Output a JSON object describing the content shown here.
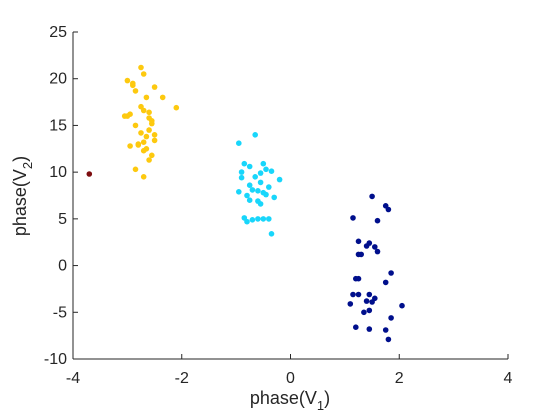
{
  "chart_data": {
    "type": "scatter",
    "title": "",
    "xlabel": {
      "base": "phase(V",
      "sub": "1",
      "close": ")"
    },
    "ylabel": {
      "base": "phase(V",
      "sub": "2",
      "close": ")"
    },
    "xlim": [
      -4,
      4
    ],
    "ylim": [
      -10,
      25
    ],
    "xticks": [
      -4,
      -2,
      0,
      2,
      4
    ],
    "yticks": [
      -10,
      -5,
      0,
      5,
      10,
      15,
      20,
      25
    ],
    "xtick_labels": [
      "-4",
      "-2",
      "0",
      "2",
      "4"
    ],
    "ytick_labels": [
      "-10",
      "-5",
      "0",
      "5",
      "10",
      "15",
      "20",
      "25"
    ],
    "grid": false,
    "legend": false,
    "series": [
      {
        "color": "#fdc90f",
        "x": [
          -2.75,
          -3.0,
          -2.9,
          -2.85,
          -2.65,
          -2.7,
          -2.5,
          -2.35,
          -3.0,
          -3.05,
          -2.1,
          -2.7,
          -2.6,
          -2.95,
          -2.6,
          -2.85,
          -2.55,
          -2.75,
          -2.6,
          -2.65,
          -2.5,
          -2.8,
          -2.95,
          -2.65,
          -2.7,
          -2.55,
          -2.6,
          -2.85,
          -2.7,
          -2.55,
          -2.8,
          -2.5,
          -2.7,
          -2.9,
          -2.75
        ],
        "y": [
          21.2,
          19.8,
          19.3,
          18.7,
          18.0,
          20.5,
          19.1,
          18.0,
          16.0,
          16.0,
          16.9,
          16.6,
          16.4,
          16.2,
          15.8,
          15.0,
          15.5,
          14.2,
          14.5,
          13.8,
          13.4,
          13.0,
          12.8,
          12.5,
          12.3,
          11.8,
          11.3,
          10.3,
          9.5,
          15.2,
          12.9,
          14.0,
          13.2,
          19.5,
          17.0
        ]
      },
      {
        "color": "#18d6fb",
        "x": [
          -0.65,
          -0.95,
          -0.5,
          -0.75,
          -0.85,
          -0.45,
          -0.55,
          -0.35,
          -0.2,
          -0.9,
          -0.55,
          -0.75,
          -0.4,
          -0.7,
          -0.6,
          -0.5,
          -0.8,
          -0.45,
          -0.75,
          -0.95,
          -0.55,
          -0.3,
          -0.85,
          -0.6,
          -0.7,
          -0.5,
          -0.4,
          -0.6,
          -0.65,
          -0.9,
          -0.8,
          -0.35
        ],
        "y": [
          14.0,
          13.1,
          10.9,
          10.6,
          10.9,
          10.3,
          9.9,
          10.1,
          9.2,
          9.4,
          8.9,
          8.6,
          8.4,
          8.1,
          8.0,
          7.8,
          7.5,
          7.6,
          7.0,
          7.9,
          6.6,
          7.3,
          5.1,
          5.0,
          4.9,
          5.0,
          5.0,
          6.9,
          9.5,
          10.0,
          4.7,
          3.4
        ]
      },
      {
        "color": "#000f8c",
        "x": [
          1.5,
          1.75,
          1.8,
          1.15,
          1.6,
          1.4,
          1.45,
          1.55,
          1.25,
          1.3,
          1.85,
          1.2,
          1.25,
          1.75,
          1.15,
          1.25,
          1.55,
          1.45,
          1.4,
          2.05,
          1.1,
          1.35,
          1.45,
          1.5,
          1.85,
          1.2,
          1.45,
          1.75,
          1.8,
          1.6,
          1.25
        ],
        "y": [
          7.4,
          6.4,
          6.0,
          5.1,
          4.8,
          2.1,
          2.4,
          2.0,
          1.2,
          1.2,
          -0.8,
          -1.4,
          -1.4,
          -1.8,
          -3.1,
          -3.1,
          -3.5,
          -3.1,
          -3.8,
          -4.3,
          -4.1,
          -5.0,
          -4.8,
          -3.9,
          -5.6,
          -6.6,
          -6.8,
          -6.9,
          -7.9,
          1.5,
          2.6
        ]
      },
      {
        "color": "#7d0d10",
        "x": [
          -3.7
        ],
        "y": [
          9.8
        ]
      }
    ]
  }
}
